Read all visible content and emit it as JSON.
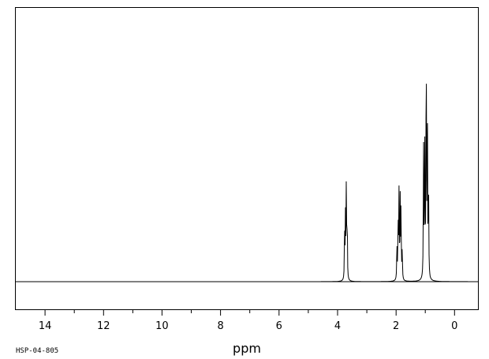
{
  "chart_data": {
    "type": "line",
    "title": "",
    "xlabel": "ppm",
    "ylabel": "",
    "x_reversed": true,
    "xlim": [
      15.0,
      -0.8
    ],
    "ylim": [
      0,
      1.0
    ],
    "grid": false,
    "x_ticks": [
      {
        "value": 14,
        "label": "14"
      },
      {
        "value": 12,
        "label": "12"
      },
      {
        "value": 10,
        "label": "10"
      },
      {
        "value": 8,
        "label": "8"
      },
      {
        "value": 6,
        "label": "6"
      },
      {
        "value": 4,
        "label": "4"
      },
      {
        "value": 2,
        "label": "2"
      },
      {
        "value": 0,
        "label": "0"
      }
    ],
    "series": [
      {
        "peaks": [
          {
            "ppm": 3.76,
            "height": 0.2
          },
          {
            "ppm": 3.73,
            "height": 0.24
          },
          {
            "ppm": 3.7,
            "height": 0.39
          },
          {
            "ppm": 3.67,
            "height": 0.23
          },
          {
            "ppm": 1.97,
            "height": 0.15
          },
          {
            "ppm": 1.93,
            "height": 0.24
          },
          {
            "ppm": 1.9,
            "height": 0.34
          },
          {
            "ppm": 1.86,
            "height": 0.31
          },
          {
            "ppm": 1.83,
            "height": 0.29
          },
          {
            "ppm": 1.79,
            "height": 0.12
          },
          {
            "ppm": 1.06,
            "height": 0.58
          },
          {
            "ppm": 1.02,
            "height": 0.56
          },
          {
            "ppm": 0.97,
            "height": 0.99
          },
          {
            "ppm": 0.93,
            "height": 0.74
          },
          {
            "ppm": 0.89,
            "height": 0.38
          }
        ]
      }
    ]
  },
  "footer": {
    "sample_code": "HSP-04-805"
  }
}
